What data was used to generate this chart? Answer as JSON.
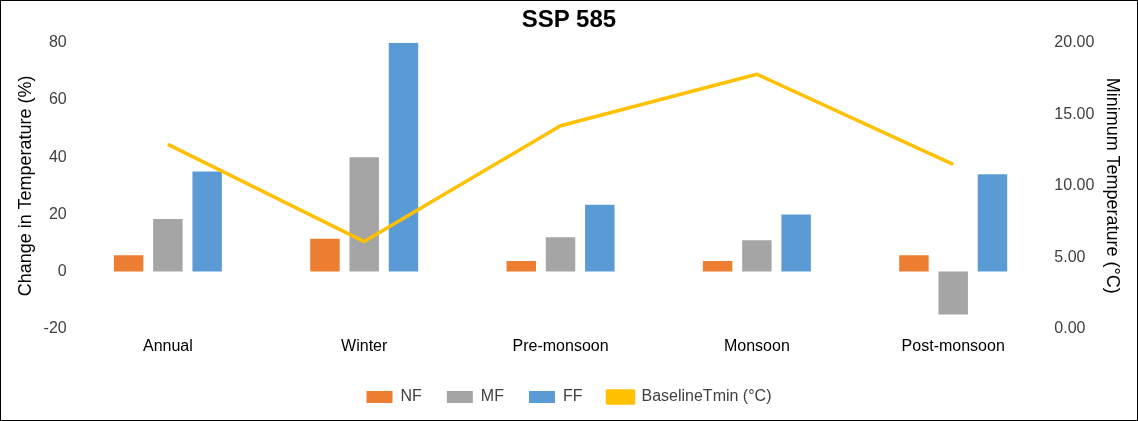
{
  "chart_data": {
    "type": "bar",
    "title": "SSP 585",
    "ylabel": "Change in Temperature (%)",
    "y2label": "Minimum Temperature (°C)",
    "categories": [
      "Annual",
      "Winter",
      "Pre-monsoon",
      "Monsoon",
      "Post-monsoon"
    ],
    "series": [
      {
        "name": "NF",
        "color": "#ed7d31",
        "values": [
          5.7,
          11.5,
          3.7,
          3.7,
          5.7
        ]
      },
      {
        "name": "MF",
        "color": "#a5a5a5",
        "values": [
          18.4,
          40,
          12,
          11,
          -15
        ]
      },
      {
        "name": "FF",
        "color": "#5b9bd5",
        "values": [
          35,
          80,
          23.4,
          20,
          34
        ]
      },
      {
        "name": "BaselineTmin (°C)",
        "type": "line",
        "axis": "y2",
        "color": "#ffc000",
        "values": [
          12.9,
          6.1,
          14.2,
          17.8,
          11.5
        ]
      }
    ],
    "ylim": [
      -20,
      80
    ],
    "yticks": [
      -20,
      0,
      20,
      40,
      60,
      80
    ],
    "y2lim": [
      0,
      20
    ],
    "y2ticks": [
      {
        "value": 0,
        "label": "0.00"
      },
      {
        "value": 5,
        "label": "5.00"
      },
      {
        "value": 10,
        "label": "10.00"
      },
      {
        "value": 15,
        "label": "15.00"
      },
      {
        "value": 20,
        "label": "20.00"
      }
    ],
    "grid": false,
    "legend": "bottom",
    "marker": "none"
  }
}
